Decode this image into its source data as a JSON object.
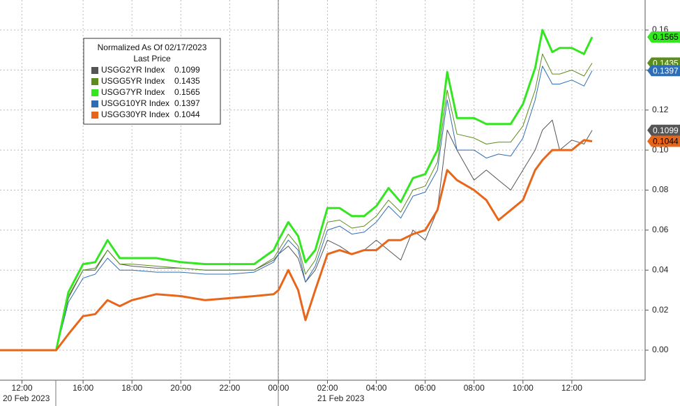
{
  "chart_data": {
    "type": "line",
    "legend_title": "Normalized As Of 02/17/2023",
    "legend_subtitle": "Last Price",
    "date_labels": [
      "20 Feb 2023",
      "21 Feb 2023"
    ],
    "x": [
      -11.4,
      -9.1,
      -8.6,
      -8.0,
      -7.5,
      -7.0,
      -6.5,
      -6,
      -5,
      -4,
      -3,
      -2,
      -1,
      -0.2,
      0,
      0.4,
      0.8,
      1.1,
      1.5,
      2,
      2.5,
      3,
      3.5,
      4,
      4.5,
      5,
      5.5,
      6,
      6.5,
      6.9,
      7.3,
      8,
      8.5,
      9,
      9.5,
      10,
      10.5,
      10.8,
      11.2,
      11.5,
      12,
      12.5,
      12.83
    ],
    "xlim": [
      -11.4,
      15
    ],
    "xticks": [
      {
        "value": -10.5,
        "label": "12:00"
      },
      {
        "value": -8,
        "label": "16:00"
      },
      {
        "value": -6,
        "label": "18:00"
      },
      {
        "value": -4,
        "label": "20:00"
      },
      {
        "value": -2,
        "label": "22:00"
      },
      {
        "value": 0,
        "label": "00:00"
      },
      {
        "value": 2,
        "label": "02:00"
      },
      {
        "value": 4,
        "label": "04:00"
      },
      {
        "value": 6,
        "label": "06:00"
      },
      {
        "value": 8,
        "label": "08:00"
      },
      {
        "value": 10,
        "label": "10:00"
      },
      {
        "value": 12,
        "label": "12:00"
      }
    ],
    "ylim": [
      -0.015,
      0.175
    ],
    "yticks": [
      {
        "value": 0,
        "label": "0.00"
      },
      0.02,
      0.04,
      0.06,
      0.08,
      {
        "value": 0.1,
        "label": "0.10"
      },
      0.12,
      0.14,
      0.16
    ],
    "grid": true,
    "series": [
      {
        "name": "USGG2YR Index",
        "color": "#555555",
        "text_color": "#ffffff",
        "width": 1,
        "values": [
          0,
          0,
          0.026,
          0.04,
          0.04,
          0.05,
          0.043,
          0.042,
          0.041,
          0.041,
          0.04,
          0.04,
          0.04,
          0.045,
          0.048,
          0.052,
          0.046,
          0.034,
          0.04,
          0.055,
          0.052,
          0.048,
          0.05,
          0.055,
          0.05,
          0.045,
          0.06,
          0.055,
          0.07,
          0.11,
          0.1,
          0.085,
          0.09,
          0.085,
          0.08,
          0.09,
          0.1,
          0.11,
          0.115,
          0.1,
          0.105,
          0.103,
          0.1099
        ]
      },
      {
        "name": "USGG5YR Index",
        "color": "#5b8c1c",
        "text_color": "#ffffff",
        "width": 1,
        "values": [
          0,
          0,
          0.027,
          0.04,
          0.041,
          0.05,
          0.043,
          0.043,
          0.042,
          0.041,
          0.04,
          0.04,
          0.04,
          0.046,
          0.05,
          0.058,
          0.052,
          0.038,
          0.045,
          0.064,
          0.065,
          0.061,
          0.062,
          0.067,
          0.075,
          0.069,
          0.08,
          0.082,
          0.094,
          0.13,
          0.108,
          0.106,
          0.103,
          0.104,
          0.104,
          0.112,
          0.13,
          0.148,
          0.138,
          0.138,
          0.14,
          0.137,
          0.1435
        ]
      },
      {
        "name": "USGG7YR Index",
        "color": "#33e61f",
        "text_color": "#000000",
        "width": 3,
        "values": [
          0,
          0,
          0.029,
          0.043,
          0.044,
          0.055,
          0.046,
          0.046,
          0.046,
          0.044,
          0.043,
          0.043,
          0.043,
          0.05,
          0.055,
          0.064,
          0.057,
          0.044,
          0.05,
          0.071,
          0.071,
          0.067,
          0.067,
          0.072,
          0.081,
          0.074,
          0.086,
          0.088,
          0.1,
          0.139,
          0.116,
          0.116,
          0.113,
          0.113,
          0.113,
          0.123,
          0.141,
          0.16,
          0.149,
          0.151,
          0.151,
          0.148,
          0.1565
        ]
      },
      {
        "name": "USGG10YR Index",
        "color": "#2f6db5",
        "text_color": "#ffffff",
        "width": 1,
        "values": [
          0,
          0,
          0.024,
          0.036,
          0.038,
          0.046,
          0.04,
          0.04,
          0.039,
          0.039,
          0.038,
          0.038,
          0.039,
          0.044,
          0.048,
          0.055,
          0.05,
          0.034,
          0.042,
          0.06,
          0.062,
          0.058,
          0.059,
          0.064,
          0.072,
          0.066,
          0.077,
          0.079,
          0.09,
          0.125,
          0.1,
          0.1,
          0.096,
          0.098,
          0.097,
          0.106,
          0.125,
          0.142,
          0.133,
          0.133,
          0.135,
          0.132,
          0.1397
        ]
      },
      {
        "name": "USGG30YR Index",
        "color": "#e8661a",
        "text_color": "#000000",
        "width": 3,
        "values": [
          0,
          0,
          0.008,
          0.017,
          0.018,
          0.025,
          0.022,
          0.025,
          0.028,
          0.027,
          0.025,
          0.026,
          0.027,
          0.028,
          0.03,
          0.04,
          0.03,
          0.015,
          0.03,
          0.048,
          0.05,
          0.048,
          0.05,
          0.05,
          0.055,
          0.055,
          0.058,
          0.06,
          0.07,
          0.09,
          0.085,
          0.08,
          0.075,
          0.065,
          0.07,
          0.075,
          0.09,
          0.095,
          0.1,
          0.1,
          0.1,
          0.105,
          0.1044
        ]
      }
    ]
  }
}
